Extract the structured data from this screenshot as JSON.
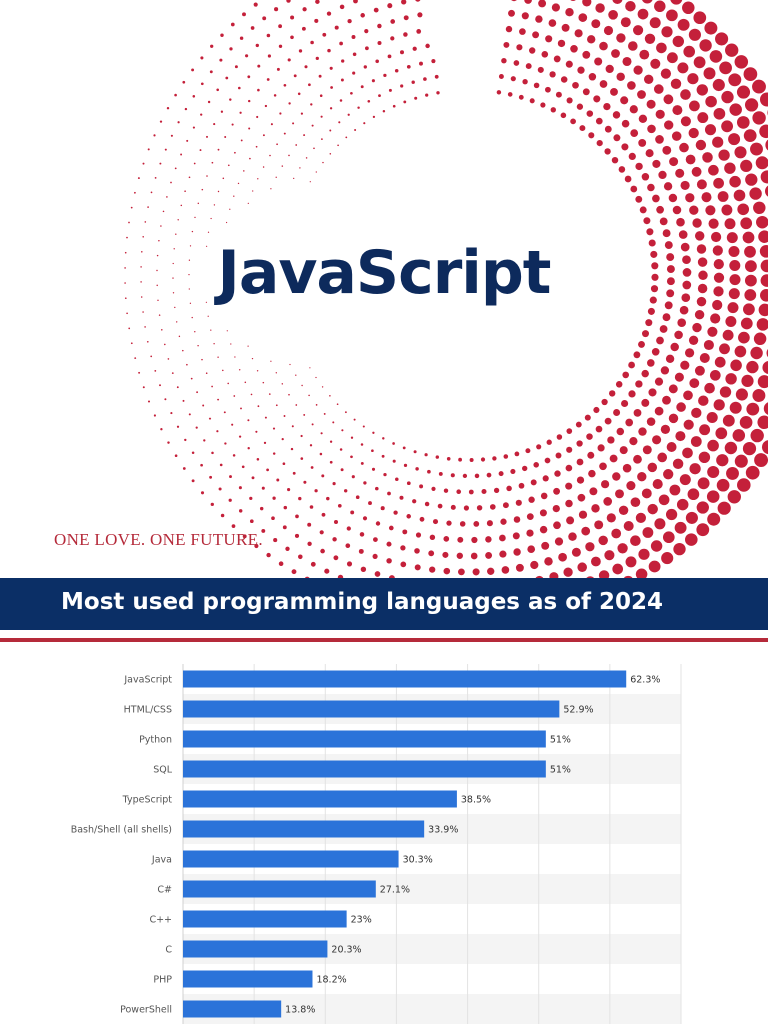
{
  "hero": {
    "title": "JavaScript",
    "tagline": "ONE LOVE. ONE FUTURE."
  },
  "banner": {
    "title": "Most used programming languages as of 2024"
  },
  "colors": {
    "brand_red": "#c4203a",
    "brand_navy": "#0b2f66",
    "bar": "#2b73d9"
  },
  "chart_data": {
    "type": "bar",
    "orientation": "horizontal",
    "categories": [
      "JavaScript",
      "HTML/CSS",
      "Python",
      "SQL",
      "TypeScript",
      "Bash/Shell (all shells)",
      "Java",
      "C#",
      "C++",
      "C",
      "PHP",
      "PowerShell"
    ],
    "values": [
      62.3,
      52.9,
      51,
      51,
      38.5,
      33.9,
      30.3,
      27.1,
      23,
      20.3,
      18.2,
      13.8
    ],
    "value_labels": [
      "62.3%",
      "52.9%",
      "51%",
      "51%",
      "38.5%",
      "33.9%",
      "30.3%",
      "27.1%",
      "23%",
      "20.3%",
      "18.2%",
      "13.8%"
    ],
    "title": "",
    "xlabel": "",
    "ylabel": "",
    "xlim": [
      0,
      70
    ],
    "grid": true,
    "legend": "none"
  }
}
